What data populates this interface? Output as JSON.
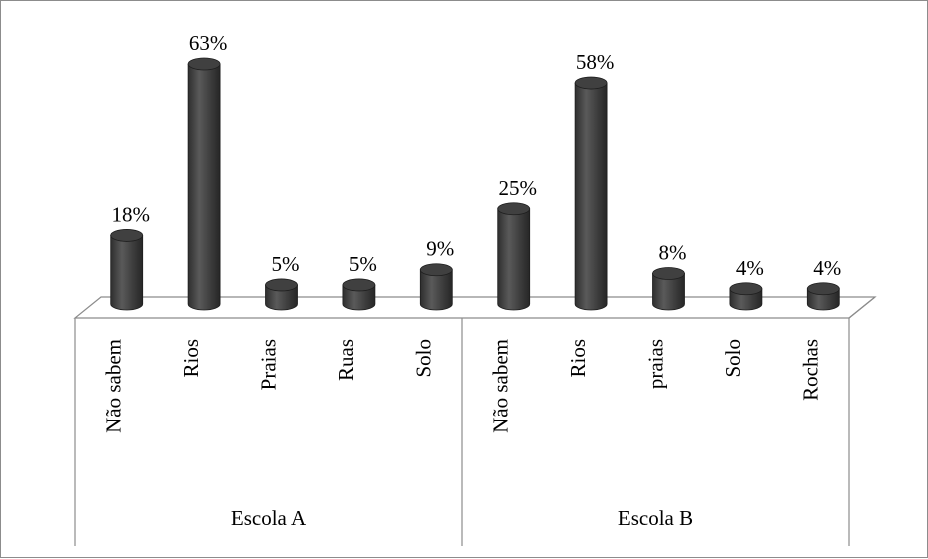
{
  "chart_data": {
    "type": "bar",
    "style": "3d-cylinder",
    "unit": "%",
    "bar_color": "#404040",
    "groups": [
      {
        "name": "Escola A",
        "categories": [
          "Não sabem",
          "Rios",
          "Praias",
          "Ruas",
          "Solo"
        ],
        "values": [
          18,
          63,
          5,
          5,
          9
        ],
        "labels": [
          "18%",
          "63%",
          "5%",
          "5%",
          "9%"
        ]
      },
      {
        "name": "Escola B",
        "categories": [
          "Não sabem",
          "Rios",
          "praias",
          "Solo",
          "Rochas"
        ],
        "values": [
          25,
          58,
          8,
          4,
          4
        ],
        "labels": [
          "25%",
          "58%",
          "8%",
          "4%",
          "4%"
        ]
      }
    ],
    "ylim": [
      0,
      63
    ],
    "grid": false,
    "legend": "none"
  }
}
